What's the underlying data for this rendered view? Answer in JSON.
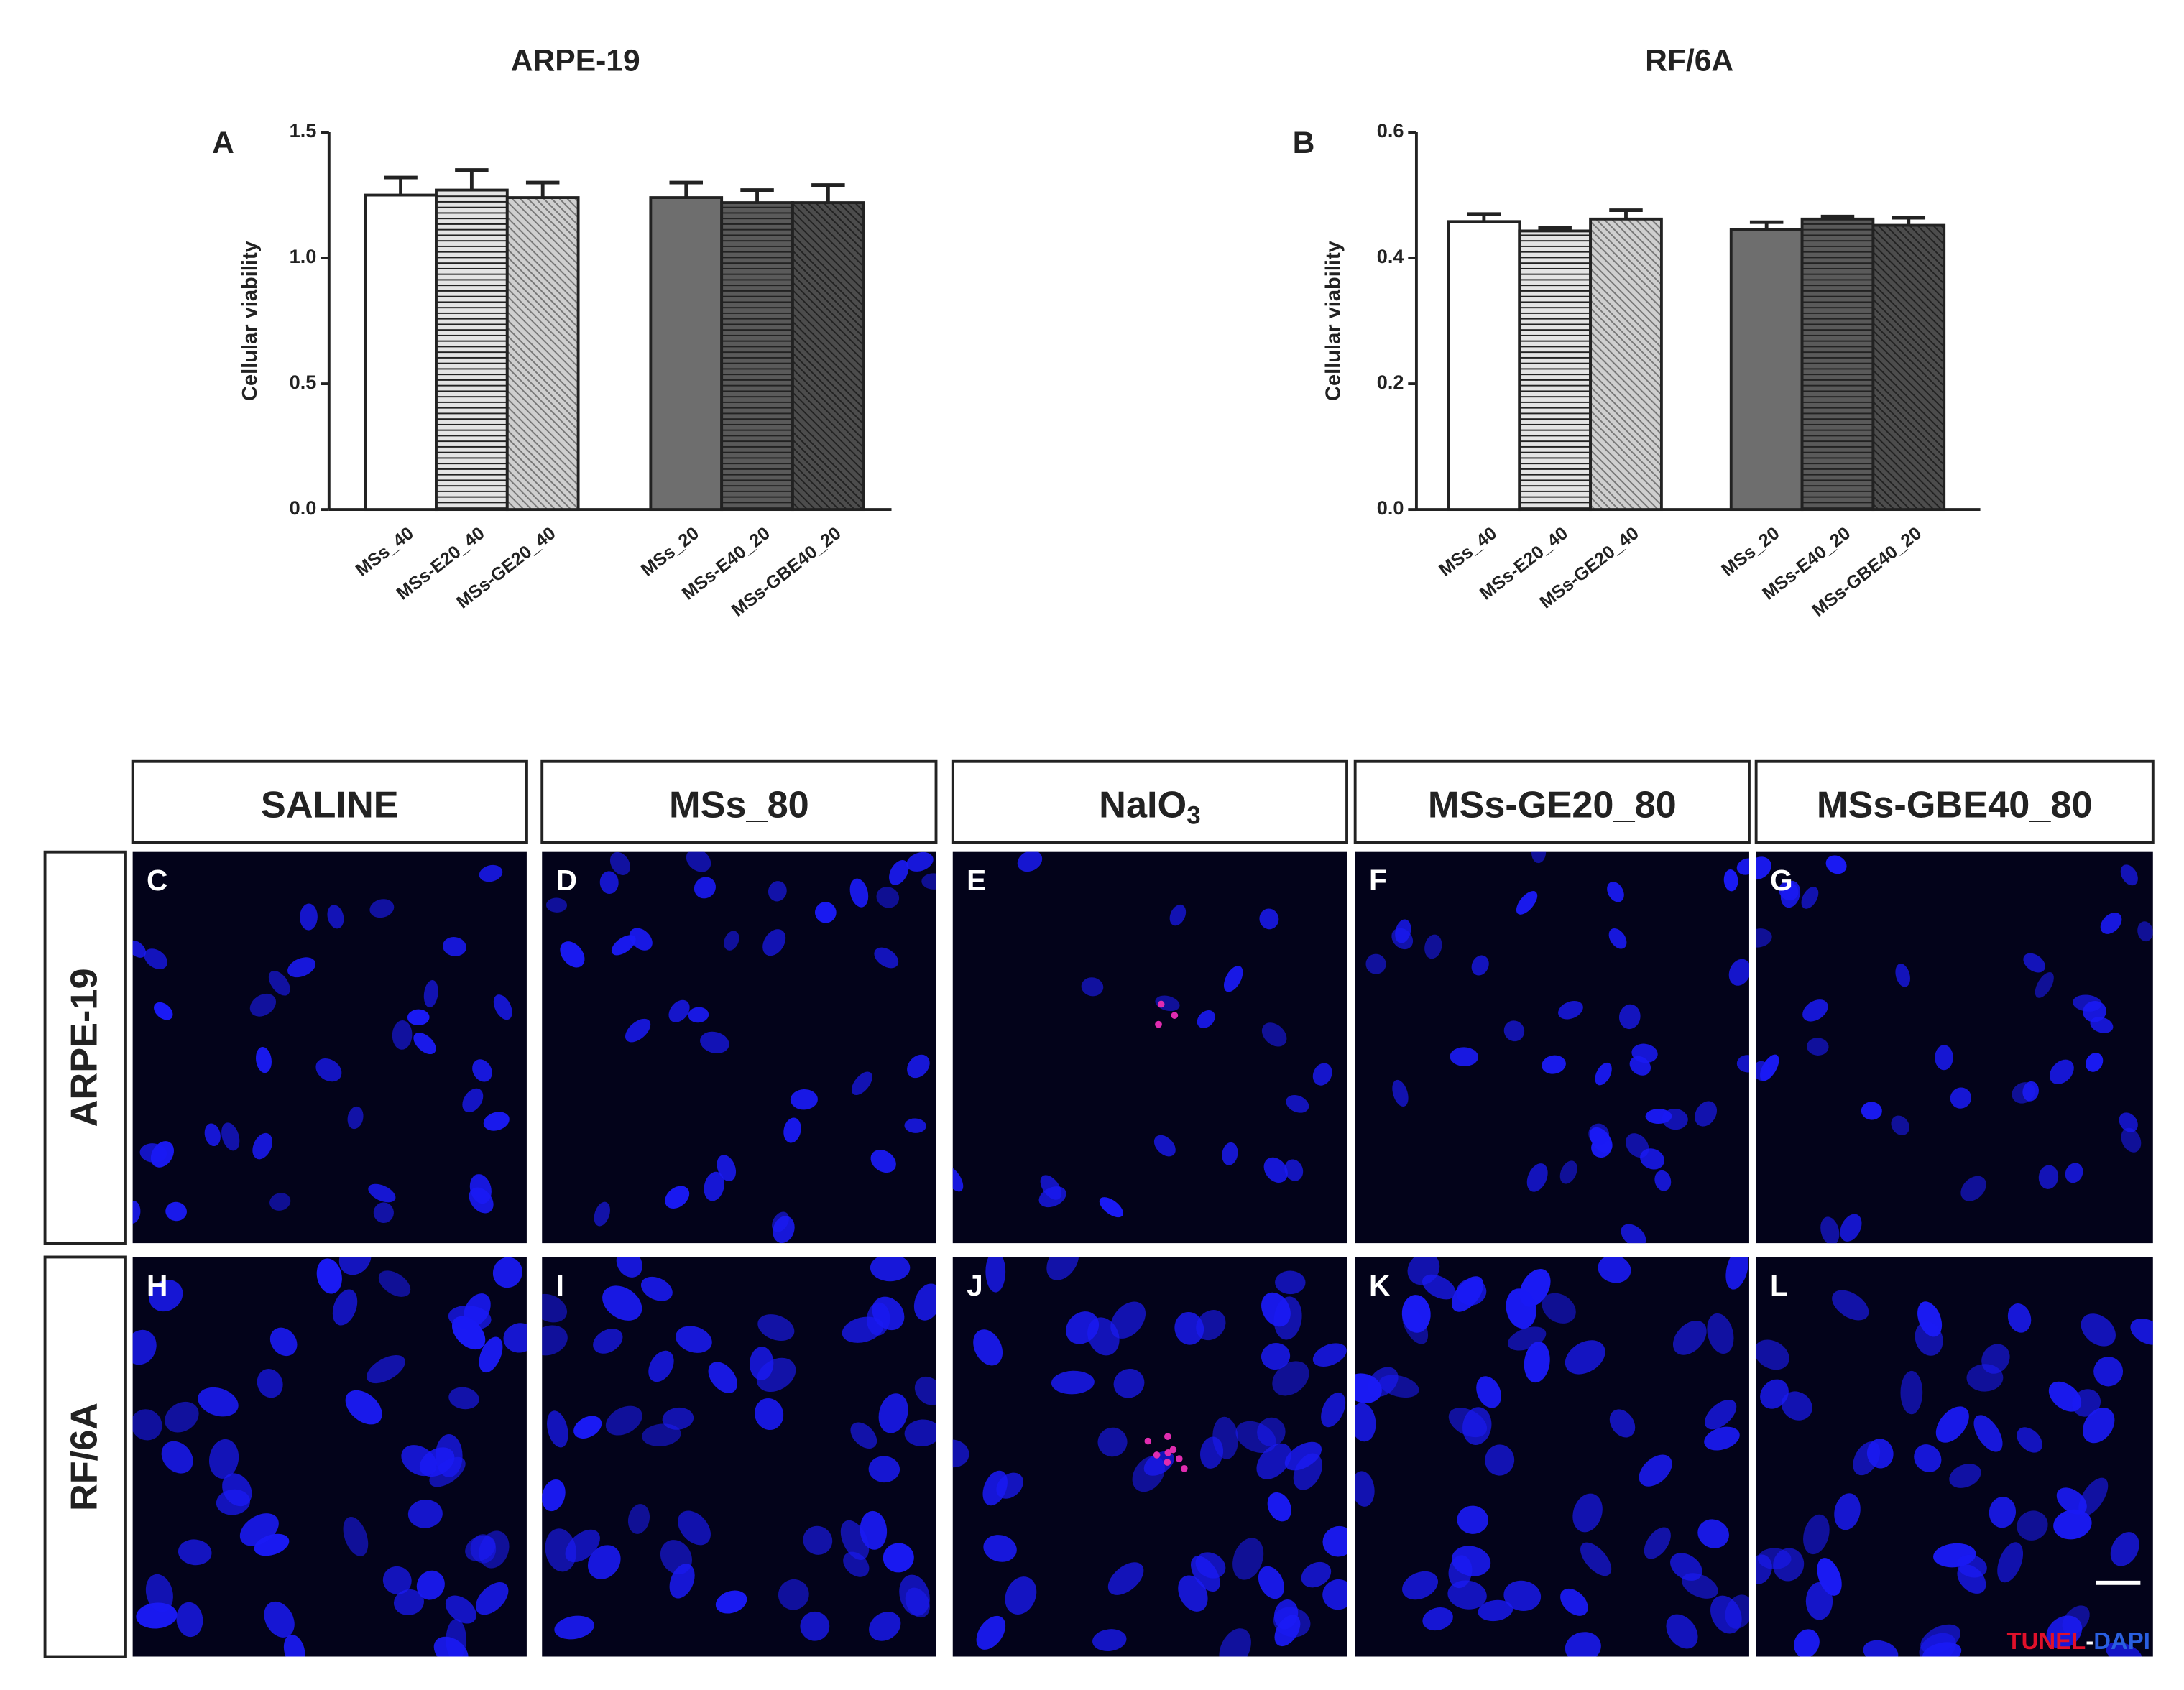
{
  "chart_data": [
    {
      "type": "bar",
      "panel": "A",
      "title": "ARPE-19",
      "ylabel": "Cellular viability",
      "categories": [
        "MSs_40",
        "MSs-E20_40",
        "MSs-GE20_40",
        "MSs_20",
        "MSs-E40_20",
        "MSs-GBE40_20"
      ],
      "values": [
        1.25,
        1.27,
        1.24,
        1.24,
        1.22,
        1.22
      ],
      "errors": [
        0.07,
        0.08,
        0.06,
        0.06,
        0.05,
        0.07
      ],
      "colors": [
        "#ffffff",
        "#e4e4e4",
        "#cfcfcf",
        "#6e6e6e",
        "#5a5a5a",
        "#4c4c4c"
      ],
      "patterns": [
        "none",
        "horizontal",
        "diagonal",
        "none",
        "horizontal",
        "diagonal"
      ],
      "ylim": [
        0,
        1.5
      ],
      "yticks": [
        {
          "value": 0,
          "label": "0.0"
        },
        0.5,
        {
          "value": 1,
          "label": "1.0"
        },
        1.5
      ]
    },
    {
      "type": "bar",
      "panel": "B",
      "title": "RF/6A",
      "ylabel": "Cellular viability",
      "categories": [
        "MSs_40",
        "MSs-E20_40",
        "MSs-GE20_40",
        "MSs_20",
        "MSs-E40_20",
        "MSs-GBE40_20"
      ],
      "values": [
        0.458,
        0.443,
        0.462,
        0.445,
        0.462,
        0.452
      ],
      "errors": [
        0.012,
        0.005,
        0.014,
        0.012,
        0.004,
        0.012
      ],
      "colors": [
        "#ffffff",
        "#e4e4e4",
        "#cfcfcf",
        "#6e6e6e",
        "#5a5a5a",
        "#4c4c4c"
      ],
      "patterns": [
        "none",
        "horizontal",
        "diagonal",
        "none",
        "horizontal",
        "diagonal"
      ],
      "ylim": [
        0,
        0.6
      ],
      "yticks": [
        {
          "value": 0,
          "label": "0.0"
        },
        0.2,
        0.4,
        0.6
      ]
    }
  ],
  "figure": {
    "column_headers": [
      {
        "text": "SALINE"
      },
      {
        "text": "MSs_80"
      },
      {
        "text": "NaIO",
        "subscript": "3"
      },
      {
        "text": "MSs-GE20_80"
      },
      {
        "text": "MSs-GBE40_80"
      }
    ],
    "row_labels": [
      "ARPE-19",
      "RF/6A"
    ],
    "panel_letters": [
      "C",
      "D",
      "E",
      "F",
      "G",
      "H",
      "I",
      "J",
      "K",
      "L"
    ],
    "legend": [
      {
        "text": "TUNEL",
        "color": "#e0102a"
      },
      {
        "text": "-",
        "color": "#ffffff"
      },
      {
        "text": "DAPI",
        "color": "#2a5fe0"
      }
    ]
  }
}
